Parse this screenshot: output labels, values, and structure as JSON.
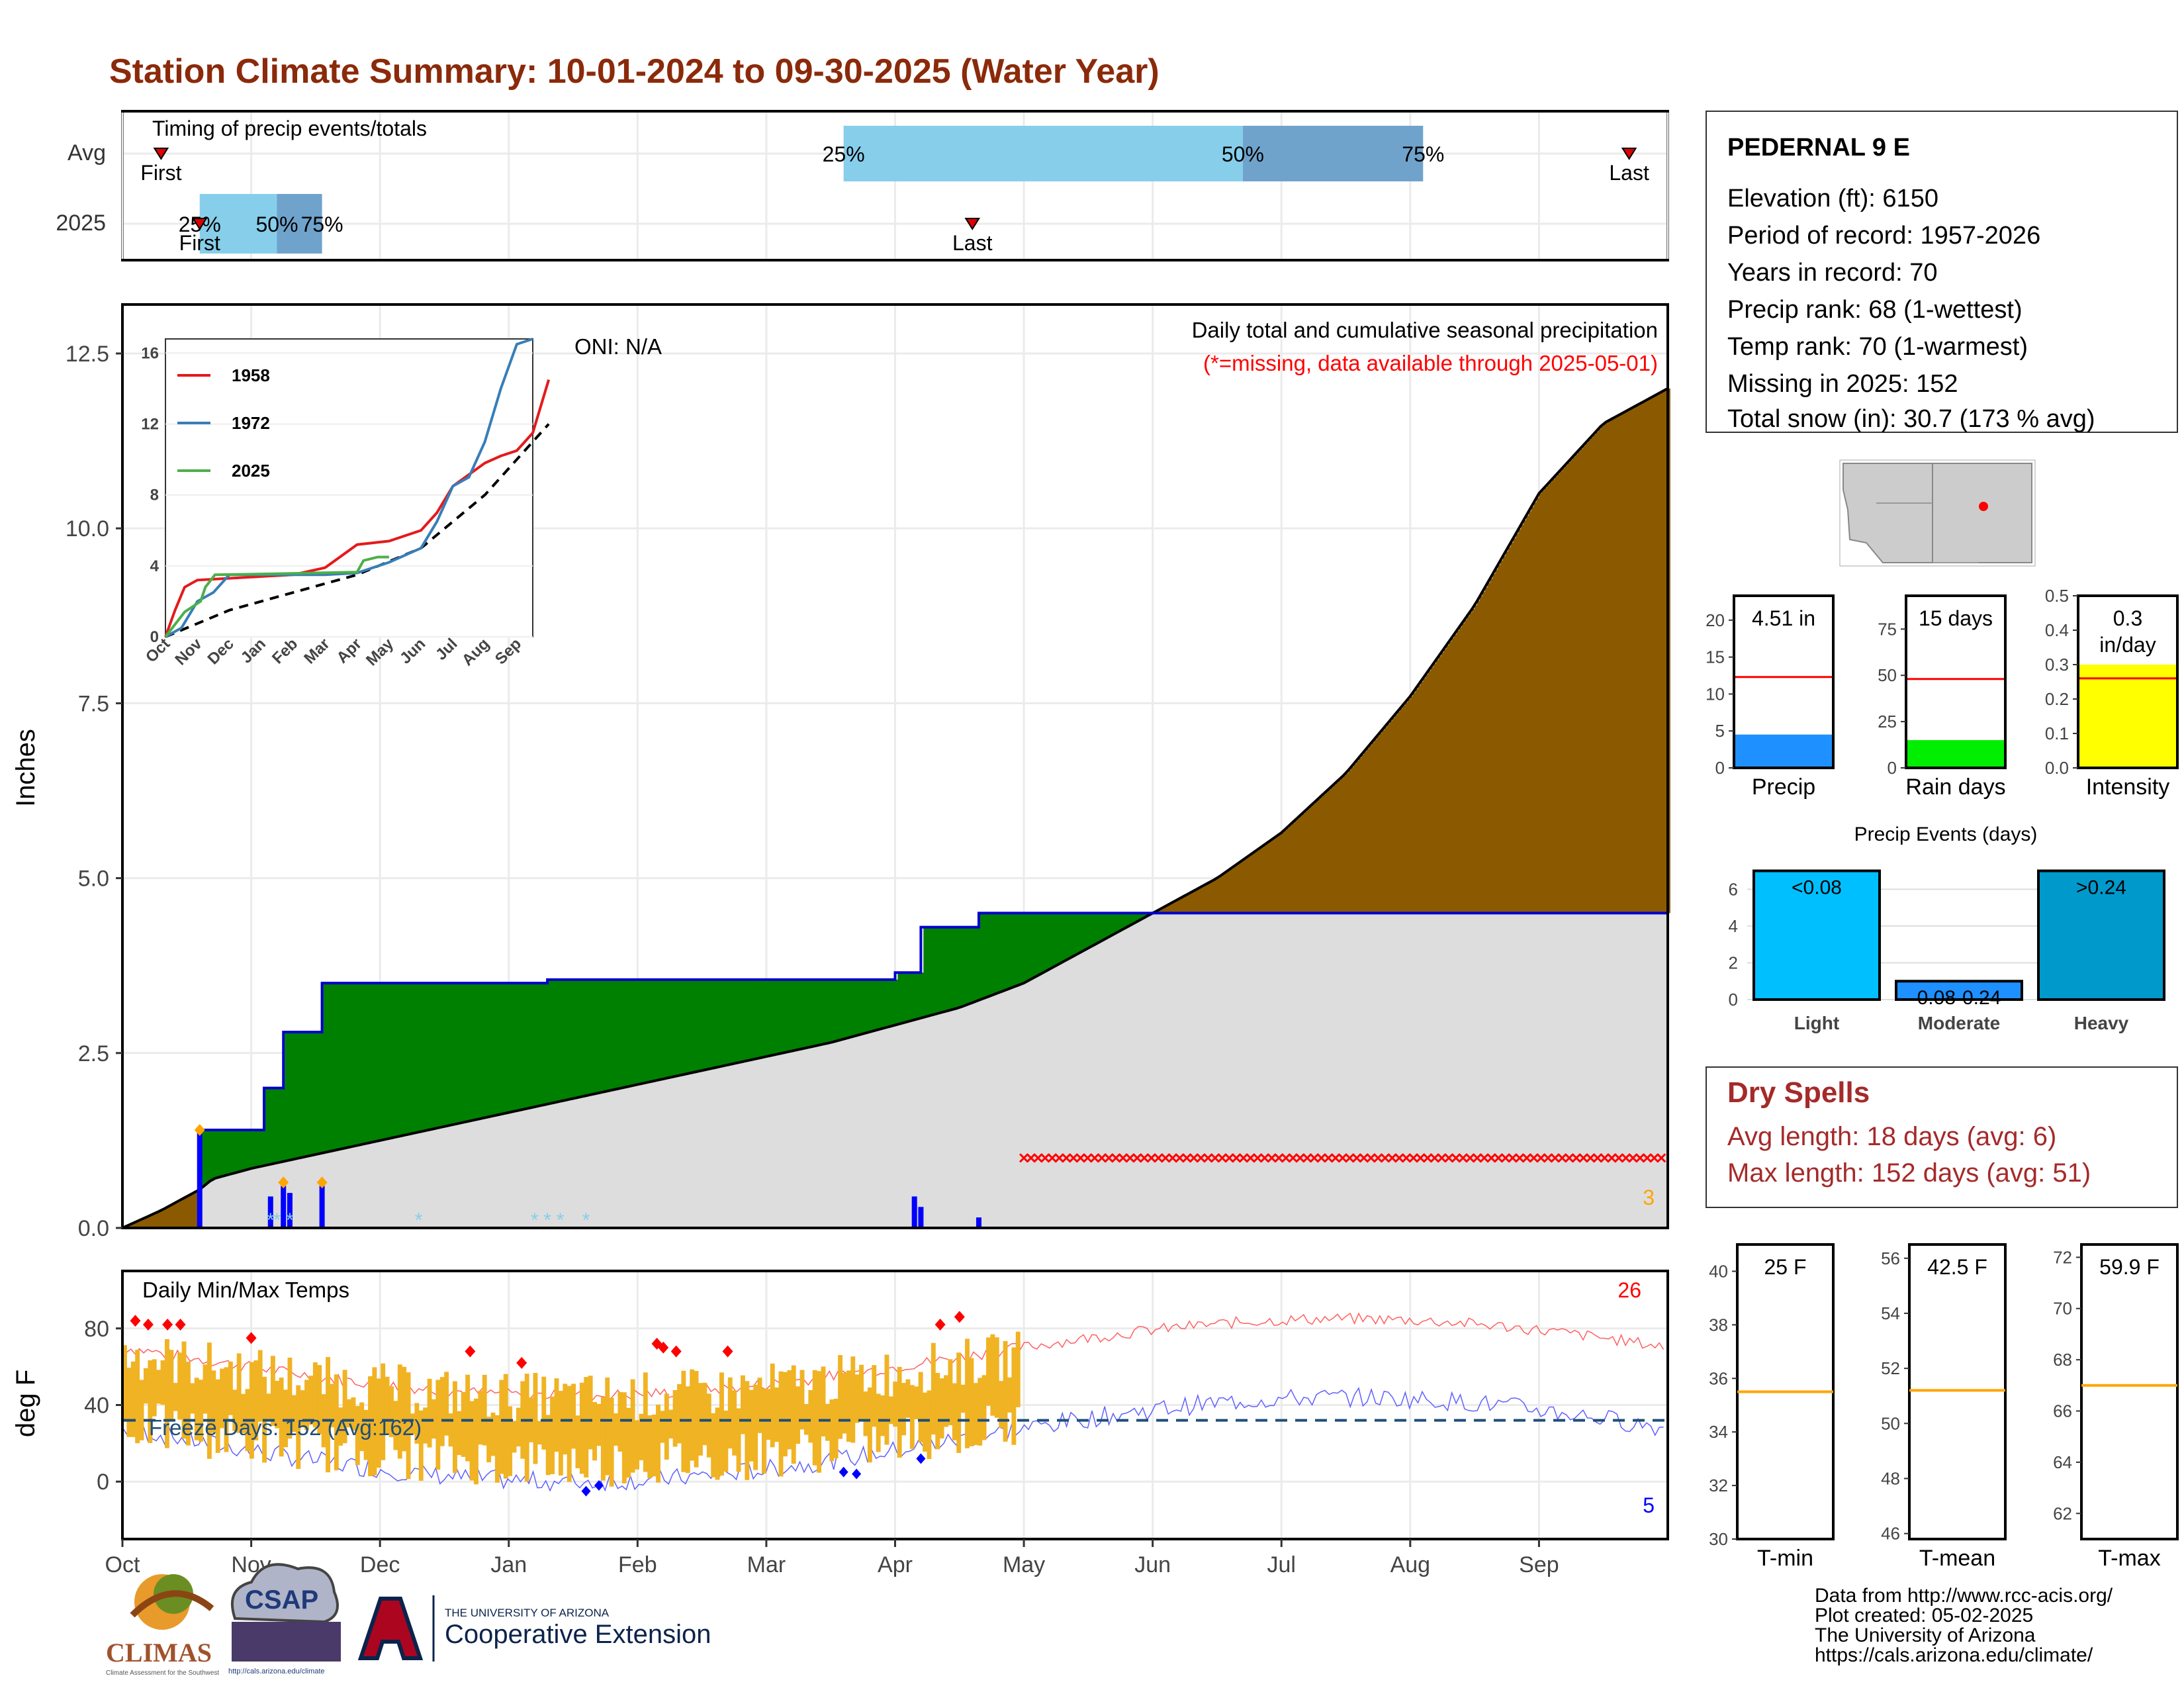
{
  "title": "Station Climate Summary: 10-01-2024 to 09-30-2025 (Water Year)",
  "colors": {
    "title": "#8b2a0a",
    "above": "#8b5a00",
    "deficit": "#008000",
    "normal": "#dddddd",
    "hi": "#ff3030",
    "lo": "#3030ff",
    "bar_temp": "#f0b323",
    "q1": "#87ceeb",
    "q2": "#6fa3cc"
  },
  "months": [
    "Oct",
    "Nov",
    "Dec",
    "Jan",
    "Feb",
    "Mar",
    "Apr",
    "May",
    "Jun",
    "Jul",
    "Aug",
    "Sep"
  ],
  "timing": {
    "title": "Timing of precip events/totals",
    "rows": [
      "Avg",
      "2025"
    ],
    "first_label": "First",
    "last_label": "Last",
    "avg": {
      "first": 0.3,
      "q25": 5.6,
      "q50": 8.7,
      "q75": 10.1,
      "last": 11.7
    },
    "y2025": {
      "first": 0.6,
      "q25": 0.6,
      "q50": 1.2,
      "q75": 1.55,
      "last": 6.6
    },
    "q_labels": [
      "25%",
      "50%",
      "75%"
    ]
  },
  "precip": {
    "ylabel": "Inches",
    "yticks": [
      "0.0",
      "2.5",
      "5.0",
      "7.5",
      "10.0",
      "12.5"
    ],
    "ylim": [
      0,
      13.2
    ],
    "note1": "Daily total and cumulative seasonal precipitation",
    "note2": "(*=missing, data available through 2025-05-01)",
    "oni": "ONI: N/A",
    "count_label": "3",
    "missing_start": 7.0,
    "normal_curve": [
      [
        0,
        0
      ],
      [
        0.3,
        0.25
      ],
      [
        0.6,
        0.55
      ],
      [
        0.7,
        0.7
      ],
      [
        1,
        0.85
      ],
      [
        1.5,
        1.05
      ],
      [
        2,
        1.25
      ],
      [
        2.5,
        1.45
      ],
      [
        3,
        1.65
      ],
      [
        3.5,
        1.85
      ],
      [
        4,
        2.05
      ],
      [
        4.5,
        2.25
      ],
      [
        5,
        2.45
      ],
      [
        5.5,
        2.65
      ],
      [
        6,
        2.9
      ],
      [
        6.5,
        3.15
      ],
      [
        7,
        3.5
      ],
      [
        7.5,
        4.0
      ],
      [
        8,
        4.5
      ],
      [
        8.5,
        5.0
      ],
      [
        9,
        5.65
      ],
      [
        9.5,
        6.5
      ],
      [
        10,
        7.6
      ],
      [
        10.5,
        8.9
      ],
      [
        11,
        10.5
      ],
      [
        11.5,
        11.5
      ],
      [
        12,
        12.0
      ]
    ],
    "obs_curve": [
      [
        0,
        0
      ],
      [
        0.6,
        0
      ],
      [
        0.6,
        1.4
      ],
      [
        1.1,
        1.4
      ],
      [
        1.1,
        2.0
      ],
      [
        1.25,
        2.0
      ],
      [
        1.25,
        2.8
      ],
      [
        1.55,
        2.8
      ],
      [
        1.55,
        3.5
      ],
      [
        3.3,
        3.5
      ],
      [
        3.3,
        3.55
      ],
      [
        6.0,
        3.55
      ],
      [
        6.0,
        3.65
      ],
      [
        6.2,
        3.65
      ],
      [
        6.2,
        4.3
      ],
      [
        6.65,
        4.3
      ],
      [
        6.65,
        4.5
      ],
      [
        12,
        4.5
      ]
    ],
    "daily_bars": [
      [
        0.6,
        1.4
      ],
      [
        1.15,
        0.45
      ],
      [
        1.25,
        0.6
      ],
      [
        1.3,
        0.5
      ],
      [
        1.55,
        0.6
      ],
      [
        6.15,
        0.45
      ],
      [
        6.2,
        0.3
      ],
      [
        6.65,
        0.15
      ]
    ],
    "snow_days": [
      1.15,
      1.2,
      1.3,
      2.3,
      3.2,
      3.3,
      3.4,
      3.6
    ],
    "ticks_markers": [
      1.25,
      1.55,
      0.6
    ]
  },
  "inset": {
    "yticks": [
      "0",
      "4",
      "8",
      "12",
      "16"
    ],
    "months": [
      "Oct",
      "Nov",
      "Dec",
      "Jan",
      "Feb",
      "Mar",
      "Apr",
      "May",
      "Jun",
      "Jul",
      "Aug",
      "Sep"
    ],
    "legend": [
      "1958",
      "1972",
      "2025"
    ],
    "y1958": [
      [
        0,
        0
      ],
      [
        0.3,
        1.5
      ],
      [
        0.6,
        2.8
      ],
      [
        1,
        3.2
      ],
      [
        2,
        3.3
      ],
      [
        3,
        3.4
      ],
      [
        4,
        3.5
      ],
      [
        5,
        3.9
      ],
      [
        6,
        5.2
      ],
      [
        7,
        5.4
      ],
      [
        8,
        6.0
      ],
      [
        8.5,
        7.0
      ],
      [
        9,
        8.5
      ],
      [
        10,
        9.8
      ],
      [
        10.5,
        10.2
      ],
      [
        11,
        10.5
      ],
      [
        11.5,
        11.5
      ],
      [
        12,
        14.5
      ]
    ],
    "y1972": [
      [
        0,
        0
      ],
      [
        0.5,
        0.5
      ],
      [
        1,
        2.0
      ],
      [
        1.5,
        2.5
      ],
      [
        2,
        3.5
      ],
      [
        4,
        3.5
      ],
      [
        5,
        3.5
      ],
      [
        6,
        3.6
      ],
      [
        7,
        4.2
      ],
      [
        8,
        5.0
      ],
      [
        8.5,
        6.5
      ],
      [
        9,
        8.5
      ],
      [
        9.5,
        9.0
      ],
      [
        10,
        11.0
      ],
      [
        10.5,
        14.0
      ],
      [
        11,
        16.5
      ],
      [
        11.5,
        16.8
      ]
    ],
    "y2025": [
      [
        0,
        0
      ],
      [
        0.6,
        1.4
      ],
      [
        1.1,
        2.0
      ],
      [
        1.25,
        2.8
      ],
      [
        1.55,
        3.5
      ],
      [
        3.3,
        3.55
      ],
      [
        6,
        3.65
      ],
      [
        6.2,
        4.3
      ],
      [
        6.65,
        4.5
      ],
      [
        7,
        4.5
      ]
    ],
    "normal": [
      [
        0,
        0
      ],
      [
        2,
        1.5
      ],
      [
        4,
        2.5
      ],
      [
        6,
        3.5
      ],
      [
        8,
        5.0
      ],
      [
        10,
        8.0
      ],
      [
        12,
        12.0
      ]
    ],
    "ylim": [
      0,
      16.8
    ]
  },
  "temps": {
    "ylabel": "deg F",
    "title": "Daily Min/Max Temps",
    "yticks": [
      "0",
      "40",
      "80"
    ],
    "freeze": "Freeze Days: 152 (Avg:162)",
    "hi_count": "26",
    "lo_count": "5",
    "ylim": [
      -30,
      110
    ]
  },
  "station": {
    "name": "PEDERNAL 9 E",
    "lines": [
      "Elevation (ft): 6150",
      "Period of record: 1957-2026",
      "Years in record: 70",
      "Precip rank: 68 (1-wettest)",
      "Temp rank: 70 (1-warmest)",
      "Missing in 2025: 152",
      "Total snow (in): 30.7 (173 % avg)"
    ]
  },
  "mini_bars": [
    {
      "label": "Precip",
      "value_label": "4.51 in",
      "value": 4.51,
      "avg": 12.3,
      "ymax": 23.3,
      "ticks": [
        "0",
        "5",
        "10",
        "15",
        "20"
      ],
      "tickvals": [
        0,
        5,
        10,
        15,
        20
      ],
      "color": "#1e90ff"
    },
    {
      "label": "Rain days",
      "value_label": "15 days",
      "value": 15,
      "avg": 48,
      "ymax": 93,
      "ticks": [
        "0",
        "25",
        "50",
        "75"
      ],
      "tickvals": [
        0,
        25,
        50,
        75
      ],
      "color": "#00ee00"
    },
    {
      "label": "Intensity",
      "value_label": "0.3 in/day",
      "value": 0.3,
      "avg": 0.26,
      "ymax": 0.5,
      "ticks": [
        "0.0",
        "0.1",
        "0.2",
        "0.3",
        "0.4",
        "0.5"
      ],
      "tickvals": [
        0,
        0.1,
        0.2,
        0.3,
        0.4,
        0.5
      ],
      "color": "#ffff00"
    }
  ],
  "events": {
    "title": "Precip Events (days)",
    "categories": [
      "Light",
      "Moderate",
      "Heavy"
    ],
    "values": [
      7,
      1,
      7
    ],
    "labels": [
      "<0.08",
      "0.08-0.24",
      ">0.24"
    ],
    "colors": [
      "#00bfff",
      "#1e90ff",
      "#0099cc"
    ],
    "yticks": [
      "0",
      "2",
      "4",
      "6"
    ]
  },
  "dry": {
    "title": "Dry Spells",
    "avg": "Avg length: 18 days (avg: 6)",
    "max": "Max length: 152 days (avg: 51)"
  },
  "temp_bars": [
    {
      "label": "T-min",
      "value_label": "25 F",
      "avg": 35.5,
      "ticks": [
        "30",
        "32",
        "34",
        "36",
        "38",
        "40"
      ],
      "tickvals": [
        30,
        32,
        34,
        36,
        38,
        40
      ],
      "ymin": 30,
      "ymax": 41
    },
    {
      "label": "T-mean",
      "value_label": "42.5 F",
      "avg": 51.2,
      "ticks": [
        "46",
        "48",
        "50",
        "52",
        "54",
        "56"
      ],
      "tickvals": [
        46,
        48,
        50,
        52,
        54,
        56
      ],
      "ymin": 45.8,
      "ymax": 56.5
    },
    {
      "label": "T-max",
      "value_label": "59.9 F",
      "avg": 67,
      "ticks": [
        "62",
        "64",
        "66",
        "68",
        "70",
        "72"
      ],
      "tickvals": [
        62,
        64,
        66,
        68,
        70,
        72
      ],
      "ymin": 61,
      "ymax": 72.5
    }
  ],
  "footer": [
    "Data from http://www.rcc-acis.org/",
    "Plot created: 05-02-2025",
    "The University of Arizona",
    "https://cals.arizona.edu/climate/"
  ],
  "logos": {
    "climas": "CLIMAS",
    "climas_sub": "Climate Assessment for the Southwest",
    "csap": "CSAP",
    "csap_url": "http://cals.arizona.edu/climate",
    "ua_small": "THE UNIVERSITY OF ARIZONA",
    "ua_big": "Cooperative Extension"
  }
}
